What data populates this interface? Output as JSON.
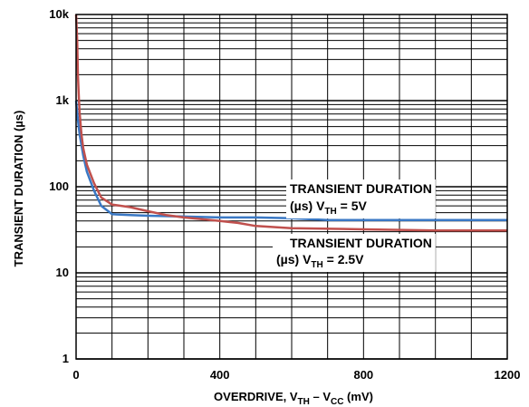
{
  "chart_data": {
    "type": "line",
    "title": "",
    "xlabel": {
      "pre": "OVERDRIVE, V",
      "sub1": "TH",
      "mid": " – V",
      "sub2": "CC",
      "post": " (mV)"
    },
    "ylabel": "TRANSIENT DURATION (µs)",
    "xlim": [
      0,
      1200
    ],
    "ylim": [
      1,
      10000
    ],
    "yscale": "log",
    "grid": true,
    "x_ticks": [
      {
        "value": 0,
        "label": "0"
      },
      {
        "value": 400,
        "label": "400"
      },
      {
        "value": 800,
        "label": "800"
      },
      {
        "value": 1200,
        "label": "1200"
      }
    ],
    "y_ticks": [
      {
        "value": 1,
        "label": "1"
      },
      {
        "value": 10,
        "label": "10"
      },
      {
        "value": 100,
        "label": "100"
      },
      {
        "value": 1000,
        "label": "1k"
      },
      {
        "value": 10000,
        "label": "10k"
      }
    ],
    "series": [
      {
        "color": "#3a78c4",
        "x": [
          0,
          5,
          10,
          20,
          30,
          50,
          70,
          100,
          150,
          200,
          300,
          400,
          500,
          600,
          700,
          800,
          1000,
          1200
        ],
        "y": [
          1000,
          600,
          400,
          230,
          150,
          90,
          60,
          48,
          47,
          46,
          45,
          44,
          44,
          43,
          41,
          41,
          41,
          41
        ]
      },
      {
        "color": "#c0504d",
        "x": [
          0,
          3,
          5,
          8,
          10,
          15,
          20,
          30,
          50,
          70,
          100,
          150,
          200,
          250,
          300,
          350,
          400,
          450,
          500,
          600,
          800,
          1000,
          1200
        ],
        "y": [
          10000,
          5000,
          2000,
          1000,
          700,
          400,
          280,
          180,
          110,
          75,
          62,
          58,
          52,
          47,
          44,
          42,
          40,
          38,
          35,
          33,
          32,
          31,
          31
        ]
      }
    ],
    "annotations": [
      {
        "id": "blue",
        "line1": "TRANSIENT DURATION",
        "l2pre": "(µs) V",
        "l2sub": "TH",
        "l2post": " = 5V"
      },
      {
        "id": "red",
        "line1": "TRANSIENT DURATION",
        "l2pre": "(µs) V",
        "l2sub": "TH",
        "l2post": " = 2.5V"
      }
    ]
  }
}
